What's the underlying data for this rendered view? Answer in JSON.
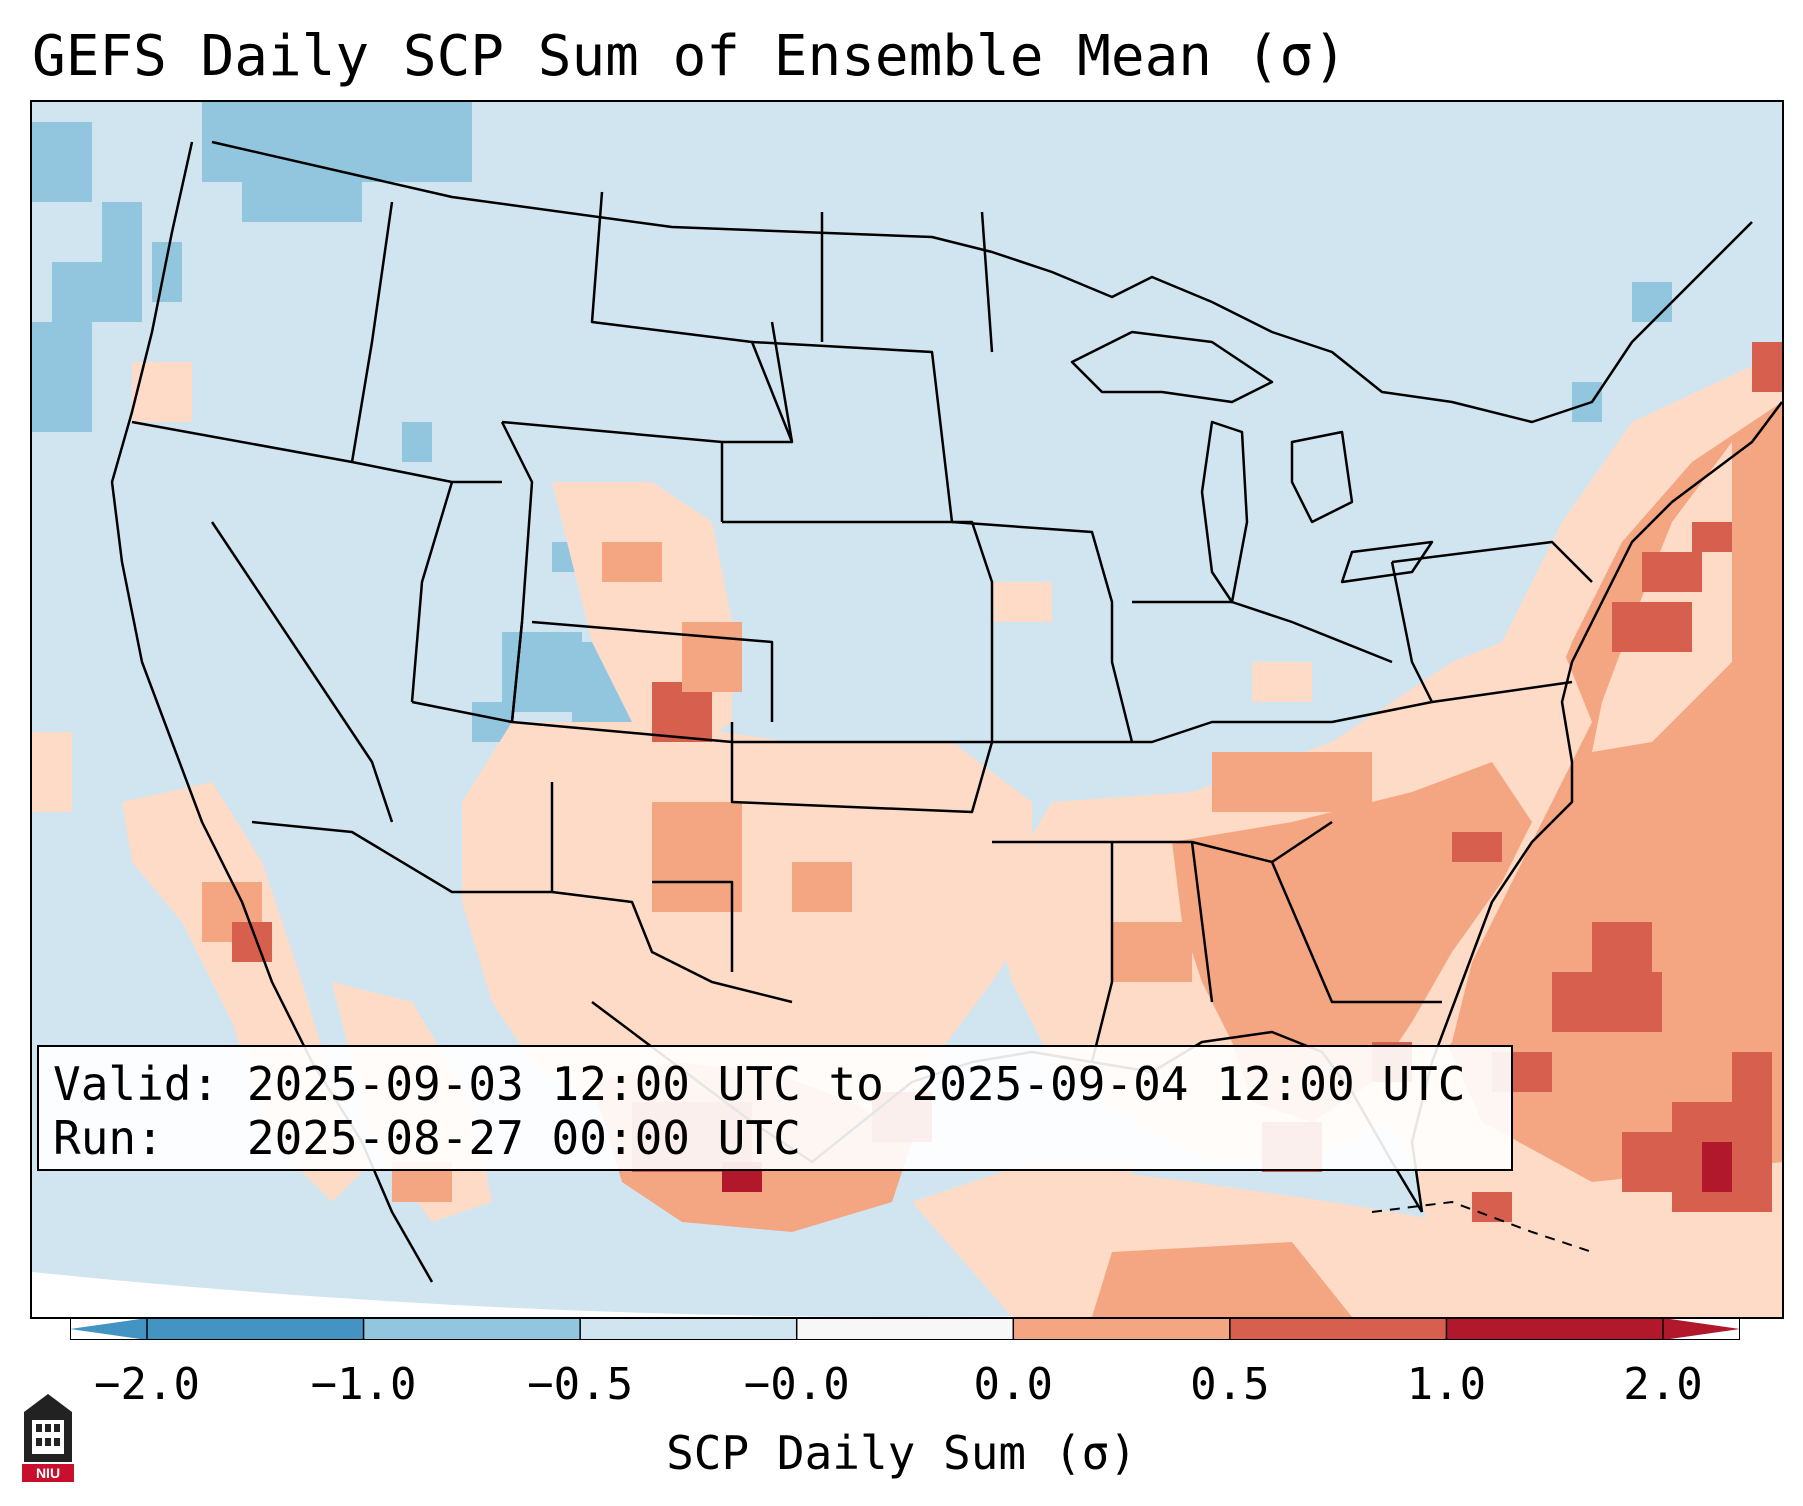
{
  "title": "GEFS Daily SCP Sum of Ensemble Mean (σ)",
  "info": {
    "valid_label": "Valid:",
    "valid_value": "2025-09-03 12:00 UTC to 2025-09-04 12:00 UTC",
    "run_label": "Run:",
    "run_value": "2025-08-27 00:00 UTC"
  },
  "colorbar": {
    "label": "SCP Daily Sum (σ)",
    "ticks": [
      "−2.0",
      "−1.0",
      "−0.5",
      "−0.0",
      "0.0",
      "0.5",
      "1.0",
      "2.0"
    ],
    "colors": [
      "#4393c3",
      "#92c5de",
      "#d1e5f0",
      "#f7f7f7",
      "#fddbc7",
      "#f4a582",
      "#d6604d",
      "#b2182b"
    ]
  },
  "logo": {
    "text": "NIU",
    "icon": "university-seal-icon"
  },
  "map": {
    "region": "Continental United States",
    "anomaly_regions": [
      {
        "name": "Southeast US",
        "level": "0.5 to 1.0"
      },
      {
        "name": "Western Atlantic off Southeast coast",
        "level": "1.0 to 2.0"
      },
      {
        "name": "South Texas",
        "level": "0.5 to 1.0"
      },
      {
        "name": "Southern Plains",
        "level": "0.0 to 0.5"
      },
      {
        "name": "Colorado Front Range",
        "level": "0.0 to 0.5"
      },
      {
        "name": "Utah / Western Colorado",
        "level": "-1.0 to -0.5"
      },
      {
        "name": "Pacific Northwest",
        "level": "-1.0 to -0.5"
      }
    ]
  }
}
